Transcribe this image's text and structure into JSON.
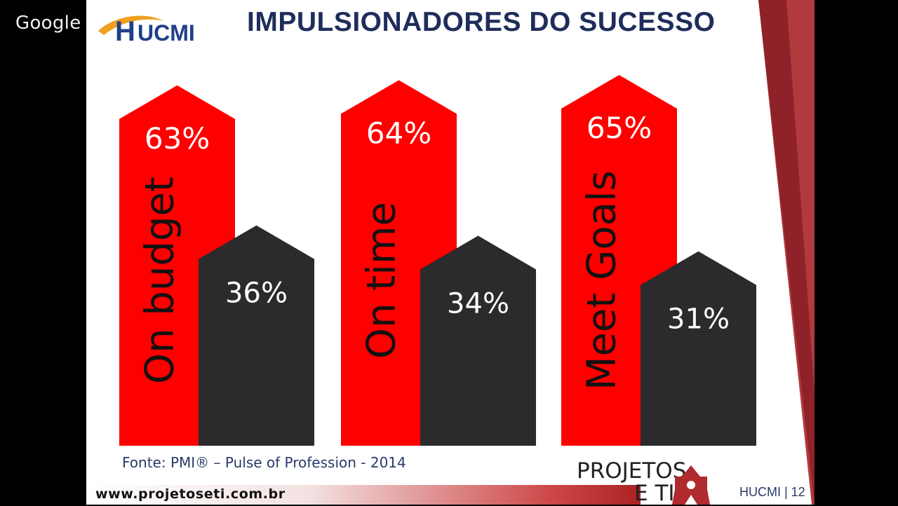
{
  "header": {
    "google_label": "Google",
    "logo_text": "HUCMI",
    "title": "IMPULSIONADORES DO SUCESSO"
  },
  "colors": {
    "primary": "#ff0000",
    "secondary": "#2b2b2d",
    "title": "#1f2d5c",
    "accent": "#a0242a"
  },
  "chart_data": {
    "type": "bar",
    "title": "IMPULSIONADORES DO SUCESSO",
    "categories": [
      "On budget",
      "On time",
      "Meet Goals"
    ],
    "series": [
      {
        "values": [
          63,
          64,
          65
        ],
        "labels": [
          "63%",
          "64%",
          "65%"
        ],
        "color": "#ff0000"
      },
      {
        "values": [
          36,
          34,
          31
        ],
        "labels": [
          "36%",
          "34%",
          "31%"
        ],
        "color": "#2b2b2d"
      }
    ],
    "ylim": [
      0,
      100
    ],
    "grid": false,
    "legend": "none",
    "source": "Fonte: PMI®  – Pulse of Profession - 2014"
  },
  "footer": {
    "url": "www.projetoseti.com.br",
    "brand_line1": "PROJETOS",
    "brand_line2": "E TI",
    "page_label": "HUCMI | 12"
  }
}
